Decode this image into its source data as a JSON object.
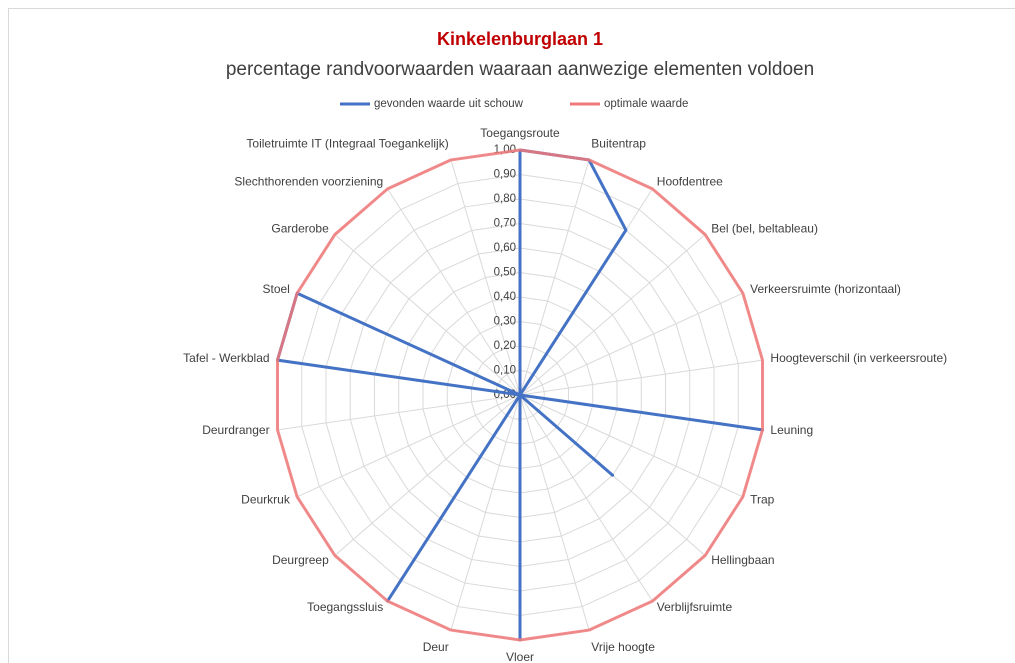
{
  "chart_data": {
    "type": "radar",
    "title": "Kinkelenburglaan 1",
    "subtitle": "percentage randvoorwaarden waaraan aanwezige elementen voldoen",
    "categories": [
      "Toegangsroute",
      "Buitentrap",
      "Hoofdentree",
      "Bel (bel, beltableau)",
      "Verkeersruimte (horizontaal)",
      "Hoogteverschil (in verkeersroute)",
      "Leuning",
      "Trap",
      "Hellingbaan",
      "Verblijfsruimte",
      "Vrije hoogte",
      "Vloer",
      "Deur",
      "Toegangssluis",
      "Deurgreep",
      "Deurkruk",
      "Deurdranger",
      "Tafel - Werkblad",
      "Stoel",
      "Garderobe",
      "Slechthorenden voorziening",
      "Toiletruimte IT (Integraal Toegankelijk)"
    ],
    "series": [
      {
        "name": "gevonden waarde uit schouw",
        "color": "#4472c4",
        "values": [
          1,
          1,
          0.8,
          0,
          0,
          0,
          1,
          0,
          0.5,
          0,
          0,
          1,
          0,
          1,
          0,
          0,
          0,
          1,
          1,
          0,
          0,
          0
        ]
      },
      {
        "name": "optimale waarde",
        "color": "#f07878",
        "values": [
          1,
          1,
          1,
          1,
          1,
          1,
          1,
          1,
          1,
          1,
          1,
          1,
          1,
          1,
          1,
          1,
          1,
          1,
          1,
          1,
          1,
          1
        ]
      }
    ],
    "ylim": [
      0,
      1
    ],
    "yticks": [
      {
        "value": 0,
        "label": "0,00"
      },
      {
        "value": 0.1,
        "label": "0,10"
      },
      {
        "value": 0.2,
        "label": "0,20"
      },
      {
        "value": 0.3,
        "label": "0,30"
      },
      {
        "value": 0.4,
        "label": "0,40"
      },
      {
        "value": 0.5,
        "label": "0,50"
      },
      {
        "value": 0.6,
        "label": "0,60"
      },
      {
        "value": 0.7,
        "label": "0,70"
      },
      {
        "value": 0.8,
        "label": "0,80"
      },
      {
        "value": 0.9,
        "label": "0,90"
      },
      {
        "value": 1,
        "label": "1,00"
      }
    ],
    "grid": true,
    "legend": "top"
  }
}
